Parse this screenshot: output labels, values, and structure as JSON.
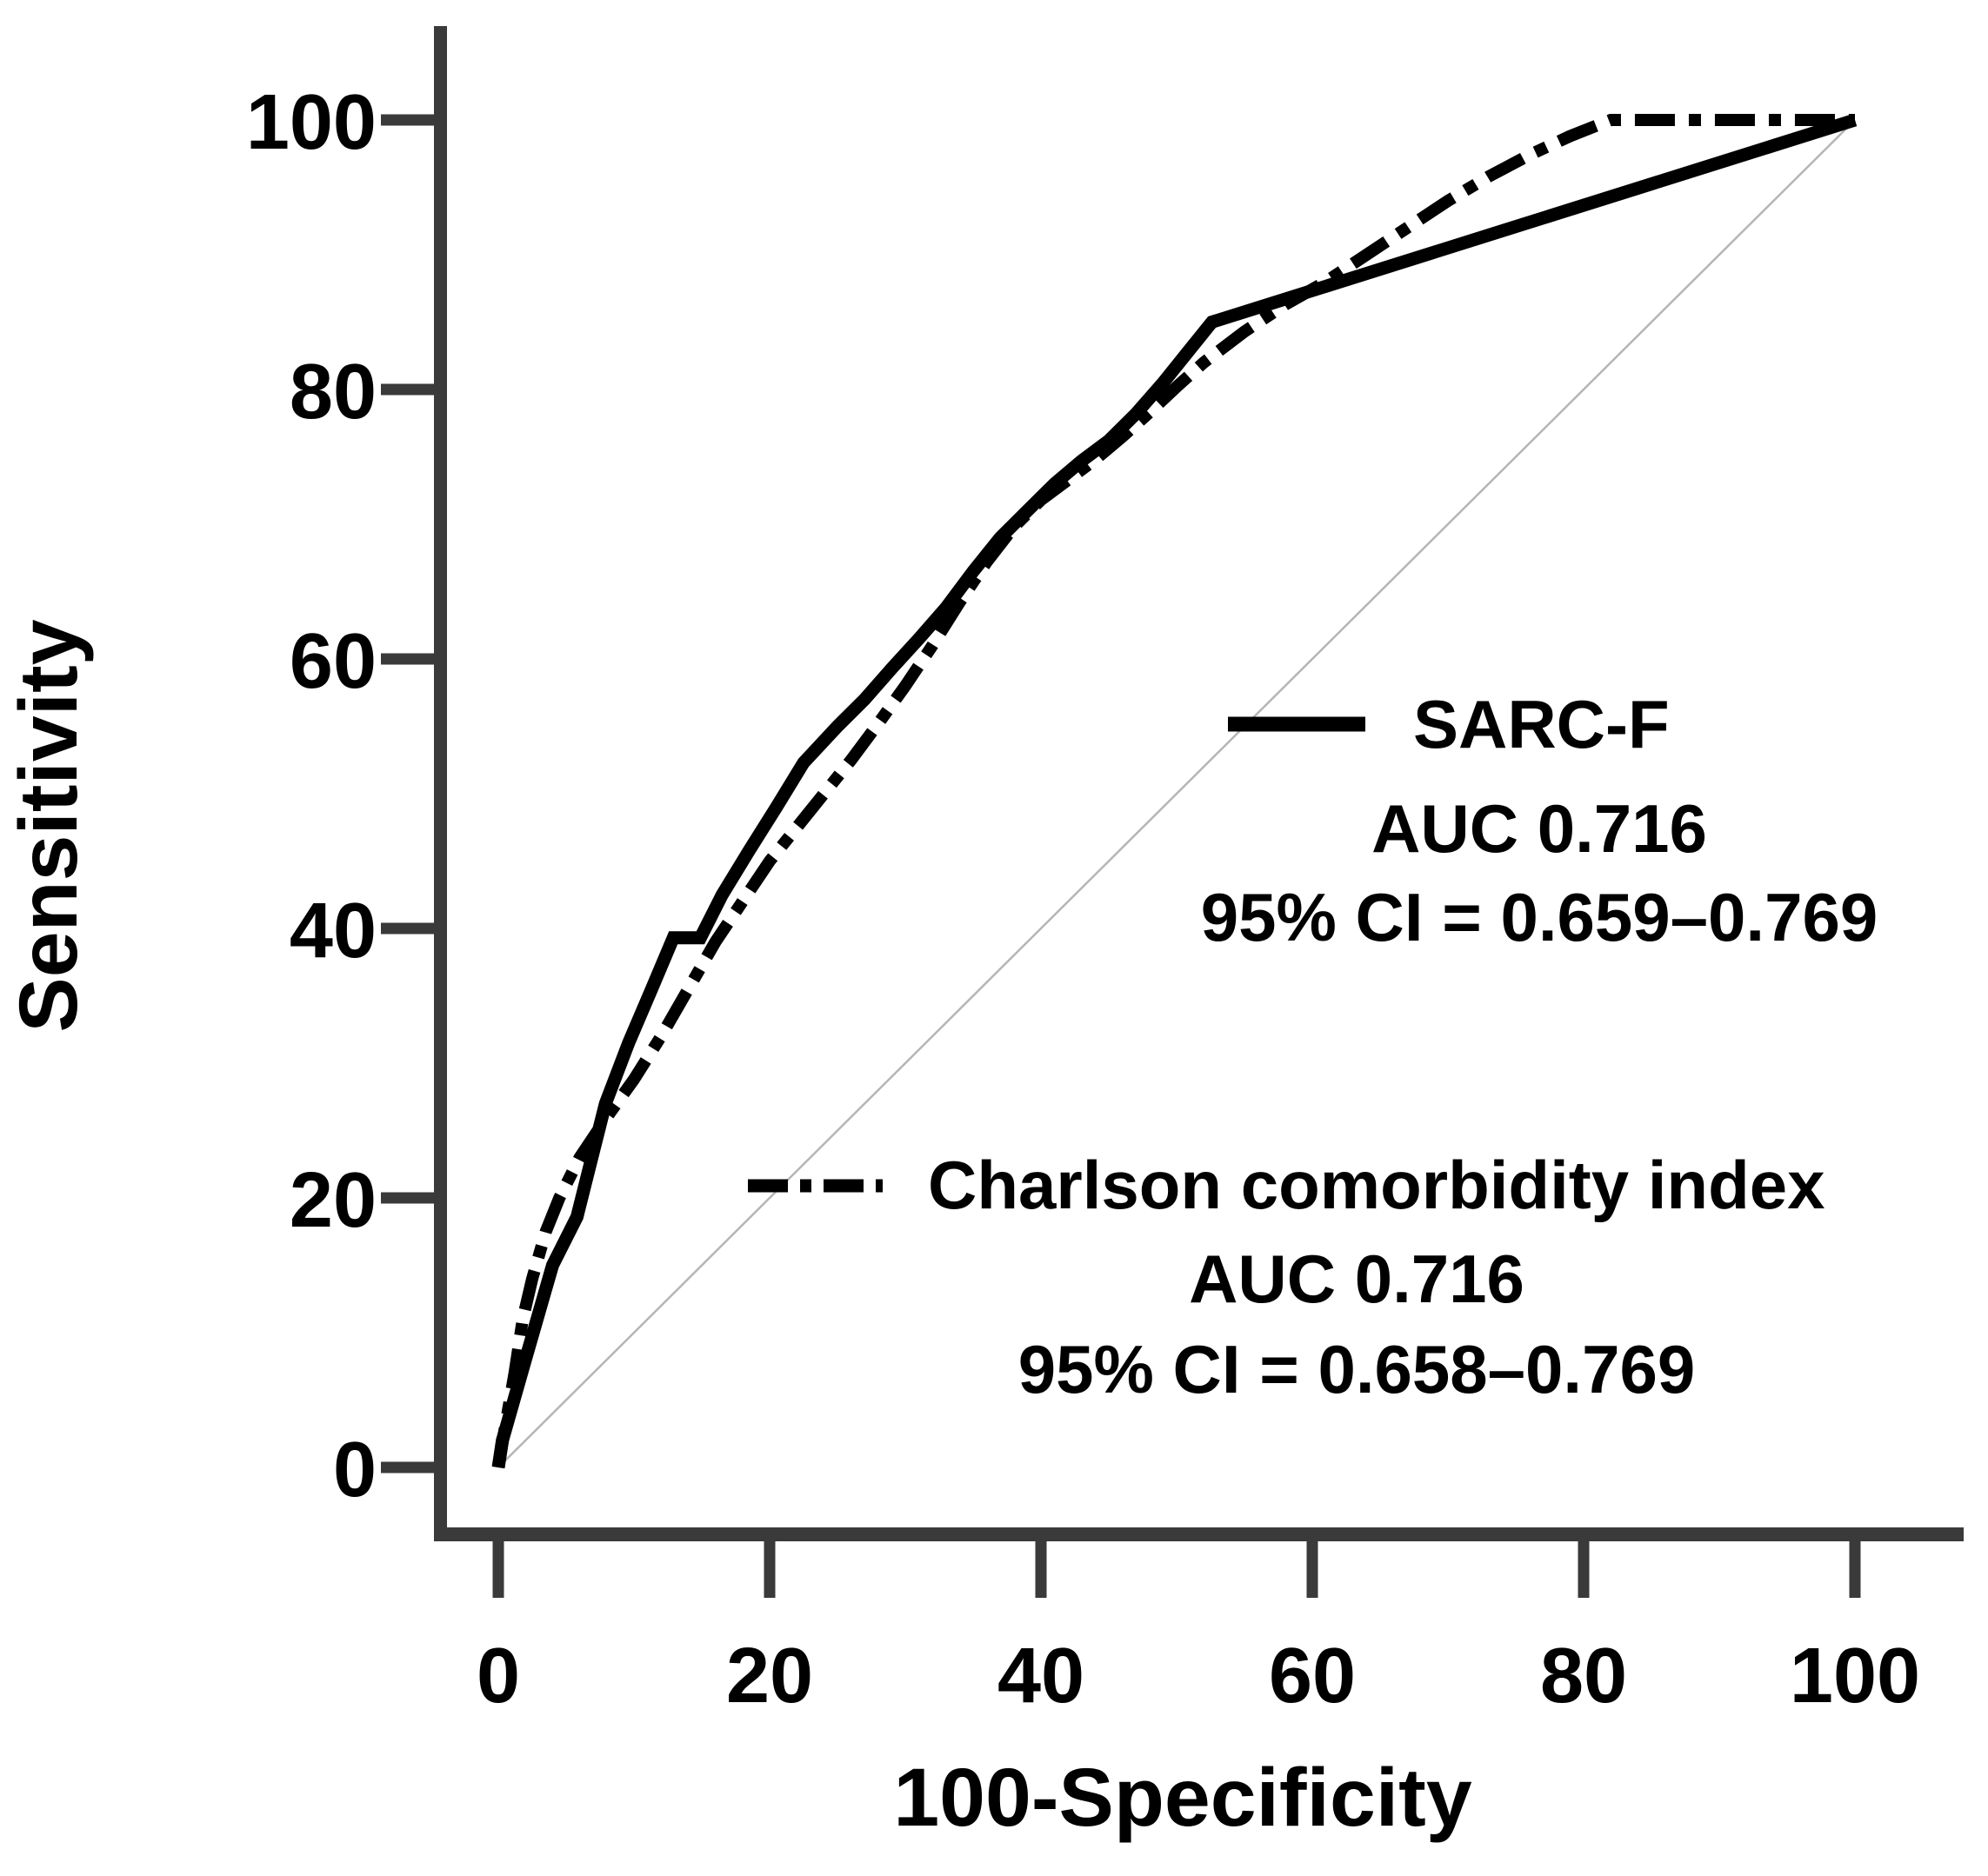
{
  "figure": {
    "background": "#ffffff",
    "axis_color": "#3a3a3a",
    "curve_color": "#000000",
    "diagonal_color": "#b5b5b5"
  },
  "axes": {
    "x_title": "100-Specificity",
    "y_title": "Sensitivity",
    "x_ticks": [
      0,
      20,
      40,
      60,
      80,
      100
    ],
    "y_ticks": [
      0,
      20,
      40,
      60,
      80,
      100
    ]
  },
  "legend": [
    {
      "label": "SARC-F",
      "auc_line": "AUC 0.716",
      "ci_line": "95% CI = 0.659–0.769",
      "style": "solid"
    },
    {
      "label": "Charlson comorbidity index",
      "auc_line": "AUC 0.716",
      "ci_line": "95% CI = 0.658–0.769",
      "style": "dash-dot"
    }
  ],
  "chart_data": {
    "type": "line",
    "title": "",
    "xlabel": "100-Specificity",
    "ylabel": "Sensitivity",
    "xlim": [
      0,
      100
    ],
    "ylim": [
      0,
      100
    ],
    "grid": false,
    "legend_position": "inside-right",
    "series": [
      {
        "name": "SARC-F",
        "auc": 0.716,
        "ci_95": "0.659–0.769",
        "style": "solid",
        "points": [
          [
            0,
            0
          ],
          [
            0.3,
            2
          ],
          [
            2,
            8
          ],
          [
            4,
            15
          ],
          [
            5.8,
            18.6
          ],
          [
            6.9,
            23
          ],
          [
            7.9,
            27
          ],
          [
            9.6,
            31.5
          ],
          [
            11.3,
            35.5
          ],
          [
            12.9,
            39.3
          ],
          [
            14.9,
            39.3
          ],
          [
            16.5,
            42.5
          ],
          [
            18.5,
            45.8
          ],
          [
            20.5,
            49
          ],
          [
            22.5,
            52.3
          ],
          [
            25,
            55
          ],
          [
            27,
            57
          ],
          [
            29,
            59.3
          ],
          [
            31,
            61.5
          ],
          [
            33,
            63.8
          ],
          [
            35,
            66.5
          ],
          [
            37,
            69
          ],
          [
            39,
            71
          ],
          [
            41,
            73
          ],
          [
            43,
            74.7
          ],
          [
            45,
            76.2
          ],
          [
            47,
            78.2
          ],
          [
            49,
            80.5
          ],
          [
            51,
            83
          ],
          [
            52.6,
            85
          ],
          [
            100,
            100
          ]
        ]
      },
      {
        "name": "Charlson comorbidity index",
        "auc": 0.716,
        "ci_95": "0.658–0.769",
        "style": "dash-dot",
        "points": [
          [
            0,
            0
          ],
          [
            0.5,
            3
          ],
          [
            1.2,
            7
          ],
          [
            1.8,
            11
          ],
          [
            2.5,
            14
          ],
          [
            3.5,
            17.5
          ],
          [
            4.5,
            20
          ],
          [
            6,
            23
          ],
          [
            8,
            26
          ],
          [
            10,
            28.8
          ],
          [
            12,
            32
          ],
          [
            14,
            35.5
          ],
          [
            16,
            39
          ],
          [
            18,
            42
          ],
          [
            20,
            45
          ],
          [
            22,
            47.5
          ],
          [
            24,
            50
          ],
          [
            26,
            52.5
          ],
          [
            28,
            55.2
          ],
          [
            30,
            58
          ],
          [
            32,
            61
          ],
          [
            34,
            64.2
          ],
          [
            36,
            67.2
          ],
          [
            38,
            69.8
          ],
          [
            40,
            71.8
          ],
          [
            42,
            73.3
          ],
          [
            44,
            74.8
          ],
          [
            46,
            76.5
          ],
          [
            48,
            78.3
          ],
          [
            50,
            80.2
          ],
          [
            52,
            82
          ],
          [
            55,
            84.3
          ],
          [
            58,
            86.3
          ],
          [
            61,
            88
          ],
          [
            64,
            90
          ],
          [
            67,
            92
          ],
          [
            70,
            94
          ],
          [
            73,
            95.8
          ],
          [
            76,
            97.4
          ],
          [
            79,
            98.8
          ],
          [
            82,
            100
          ],
          [
            100,
            100
          ]
        ]
      },
      {
        "name": "reference diagonal",
        "style": "reference",
        "points": [
          [
            0,
            0
          ],
          [
            100,
            100
          ]
        ]
      }
    ]
  }
}
